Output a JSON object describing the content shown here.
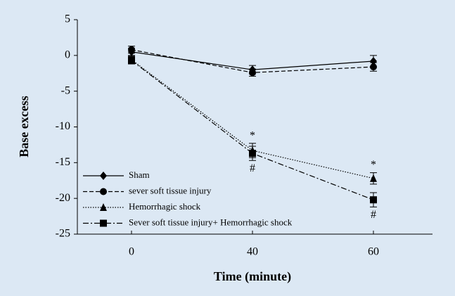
{
  "chart_data": {
    "type": "line",
    "x_label": "Time (minute)",
    "y_label": "Base excess",
    "categories": [
      "0",
      "40",
      "60"
    ],
    "ylim": [
      -25,
      5
    ],
    "yticks": [
      -25,
      -20,
      -15,
      -10,
      -5,
      0,
      5
    ],
    "legend": "lower left",
    "series": [
      {
        "name": "Sham",
        "color": "#000000",
        "marker": "diamond",
        "dash": "solid",
        "values": [
          0.5,
          -2.0,
          -0.8
        ],
        "errors": [
          0.5,
          0.6,
          0.8
        ]
      },
      {
        "name": "sever soft tissue injury",
        "color": "#000000",
        "marker": "circle",
        "dash": "dashed",
        "values": [
          0.8,
          -2.4,
          -1.6
        ],
        "errors": [
          0.5,
          0.5,
          0.6
        ]
      },
      {
        "name": "Hemorrhagic shock",
        "color": "#000000",
        "marker": "triangle",
        "dash": "dotted",
        "values": [
          -0.6,
          -13.3,
          -17.2
        ],
        "errors": [
          0.5,
          1.0,
          0.8
        ]
      },
      {
        "name": "Sever soft tissue injury+ Hemorrhagic shock",
        "color": "#000000",
        "marker": "square",
        "dash": "dashdot",
        "values": [
          -0.7,
          -13.7,
          -20.2
        ],
        "errors": [
          0.5,
          1.0,
          1.0
        ]
      }
    ],
    "annotations_above": [
      null,
      "*",
      "*"
    ],
    "annotations_below": [
      null,
      "#",
      "#"
    ]
  }
}
